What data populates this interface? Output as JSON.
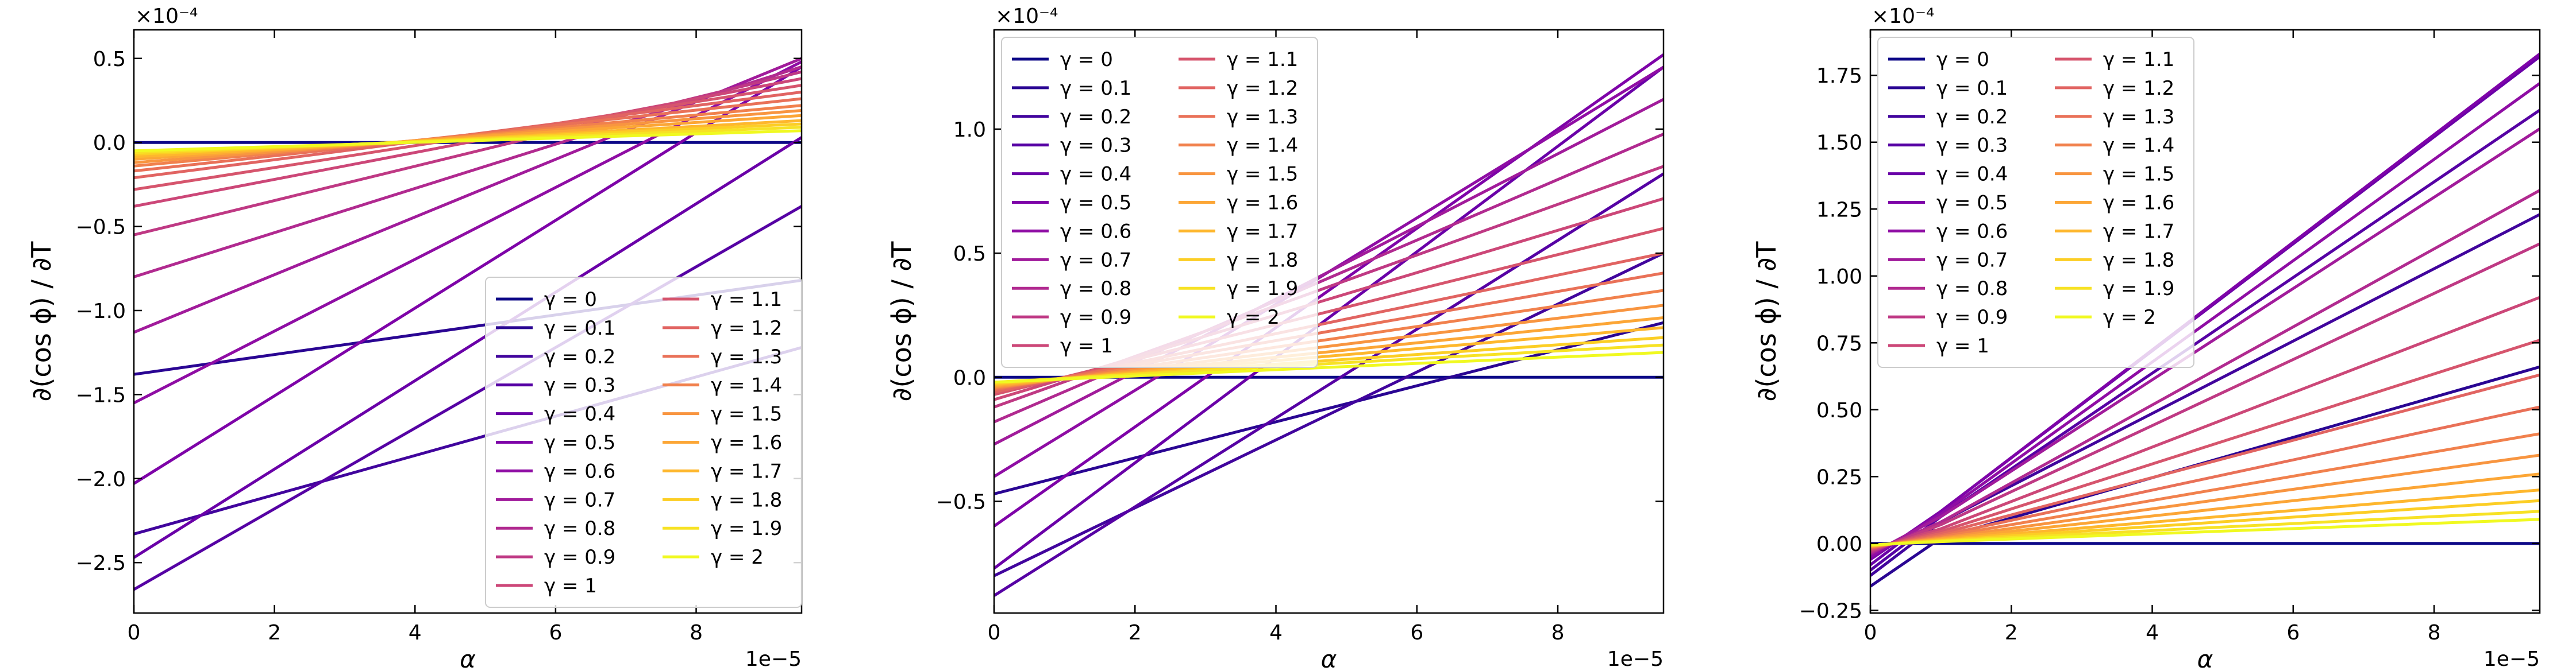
{
  "chart_data": [
    {
      "type": "line",
      "xlabel": "α",
      "ylabel": "∂(cos ϕ) / ∂T",
      "x_offset_label": "1e−5",
      "y_offset_label": "×10⁻⁴",
      "xlim": [
        0,
        9.5
      ],
      "ylim": [
        -2.8,
        0.67
      ],
      "xticks": [
        0,
        2,
        4,
        6,
        8
      ],
      "yticks": [
        -2.5,
        -2.0,
        -1.5,
        -1.0,
        -0.5,
        0.0,
        0.5
      ],
      "ytick_labels": [
        "−2.5",
        "−2.0",
        "−1.5",
        "−1.0",
        "−0.5",
        "0.0",
        "0.5"
      ],
      "legend_placement": "lower right",
      "x": [
        0,
        9.5
      ],
      "series": [
        {
          "name": "γ = 0",
          "values": [
            0.0,
            0.0
          ]
        },
        {
          "name": "γ = 0.1",
          "values": [
            -1.38,
            -0.82
          ]
        },
        {
          "name": "γ = 0.2",
          "values": [
            -2.33,
            -1.22
          ]
        },
        {
          "name": "γ = 0.3",
          "values": [
            -2.66,
            -0.38
          ]
        },
        {
          "name": "γ = 0.4",
          "values": [
            -2.47,
            0.03
          ]
        },
        {
          "name": "γ = 0.5",
          "values": [
            -2.03,
            0.45
          ]
        },
        {
          "name": "γ = 0.6",
          "values": [
            -1.55,
            0.48
          ]
        },
        {
          "name": "γ = 0.7",
          "values": [
            -1.13,
            0.5
          ]
        },
        {
          "name": "γ = 0.8",
          "values": [
            -0.8,
            0.45
          ]
        },
        {
          "name": "γ = 0.9",
          "values": [
            -0.55,
            0.42
          ]
        },
        {
          "name": "γ = 1",
          "values": [
            -0.38,
            0.38
          ]
        },
        {
          "name": "γ = 1.1",
          "values": [
            -0.28,
            0.34
          ]
        },
        {
          "name": "γ = 1.2",
          "values": [
            -0.21,
            0.3
          ]
        },
        {
          "name": "γ = 1.3",
          "values": [
            -0.17,
            0.26
          ]
        },
        {
          "name": "γ = 1.4",
          "values": [
            -0.14,
            0.22
          ]
        },
        {
          "name": "γ = 1.5",
          "values": [
            -0.12,
            0.19
          ]
        },
        {
          "name": "γ = 1.6",
          "values": [
            -0.1,
            0.16
          ]
        },
        {
          "name": "γ = 1.7",
          "values": [
            -0.085,
            0.13
          ]
        },
        {
          "name": "γ = 1.8",
          "values": [
            -0.07,
            0.11
          ]
        },
        {
          "name": "γ = 1.9",
          "values": [
            -0.06,
            0.09
          ]
        },
        {
          "name": "γ = 2",
          "values": [
            -0.05,
            0.07
          ]
        }
      ]
    },
    {
      "type": "line",
      "xlabel": "α",
      "ylabel": "∂(cos ϕ) / ∂T",
      "x_offset_label": "1e−5",
      "y_offset_label": "×10⁻⁴",
      "xlim": [
        0,
        9.5
      ],
      "ylim": [
        -0.95,
        1.4
      ],
      "xticks": [
        0,
        2,
        4,
        6,
        8
      ],
      "yticks": [
        -0.5,
        0.0,
        0.5,
        1.0
      ],
      "ytick_labels": [
        "−0.5",
        "0.0",
        "0.5",
        "1.0"
      ],
      "legend_placement": "upper left",
      "x": [
        0,
        9.5
      ],
      "series": [
        {
          "name": "γ = 0",
          "values": [
            0.0,
            0.0
          ]
        },
        {
          "name": "γ = 0.1",
          "values": [
            -0.47,
            0.22
          ]
        },
        {
          "name": "γ = 0.2",
          "values": [
            -0.8,
            0.5
          ]
        },
        {
          "name": "γ = 0.3",
          "values": [
            -0.88,
            0.82
          ]
        },
        {
          "name": "γ = 0.4",
          "values": [
            -0.77,
            1.25
          ]
        },
        {
          "name": "γ = 0.5",
          "values": [
            -0.6,
            1.3
          ]
        },
        {
          "name": "γ = 0.6",
          "values": [
            -0.4,
            1.25
          ]
        },
        {
          "name": "γ = 0.7",
          "values": [
            -0.27,
            1.12
          ]
        },
        {
          "name": "γ = 0.8",
          "values": [
            -0.18,
            0.98
          ]
        },
        {
          "name": "γ = 0.9",
          "values": [
            -0.12,
            0.85
          ]
        },
        {
          "name": "γ = 1",
          "values": [
            -0.09,
            0.72
          ]
        },
        {
          "name": "γ = 1.1",
          "values": [
            -0.07,
            0.6
          ]
        },
        {
          "name": "γ = 1.2",
          "values": [
            -0.06,
            0.5
          ]
        },
        {
          "name": "γ = 1.3",
          "values": [
            -0.05,
            0.42
          ]
        },
        {
          "name": "γ = 1.4",
          "values": [
            -0.045,
            0.35
          ]
        },
        {
          "name": "γ = 1.5",
          "values": [
            -0.04,
            0.29
          ]
        },
        {
          "name": "γ = 1.6",
          "values": [
            -0.035,
            0.24
          ]
        },
        {
          "name": "γ = 1.7",
          "values": [
            -0.03,
            0.2
          ]
        },
        {
          "name": "γ = 1.8",
          "values": [
            -0.025,
            0.16
          ]
        },
        {
          "name": "γ = 1.9",
          "values": [
            -0.02,
            0.13
          ]
        },
        {
          "name": "γ = 2",
          "values": [
            -0.02,
            0.1
          ]
        }
      ]
    },
    {
      "type": "line",
      "xlabel": "α",
      "ylabel": "∂(cos ϕ) / ∂T",
      "x_offset_label": "1e−5",
      "y_offset_label": "×10⁻⁴",
      "xlim": [
        0,
        9.5
      ],
      "ylim": [
        -0.26,
        1.92
      ],
      "xticks": [
        0,
        2,
        4,
        6,
        8
      ],
      "yticks": [
        -0.25,
        0.0,
        0.25,
        0.5,
        0.75,
        1.0,
        1.25,
        1.5,
        1.75
      ],
      "ytick_labels": [
        "−0.25",
        "0.00",
        "0.25",
        "0.50",
        "0.75",
        "1.00",
        "1.25",
        "1.50",
        "1.75"
      ],
      "legend_placement": "upper left",
      "x": [
        0,
        1,
        9.5
      ],
      "series": [
        {
          "name": "γ = 0",
          "values": [
            0.0,
            0.0,
            0.0
          ]
        },
        {
          "name": "γ = 0.1",
          "values": [
            -0.16,
            0.02,
            0.66
          ]
        },
        {
          "name": "γ = 0.2",
          "values": [
            -0.12,
            0.08,
            1.23
          ]
        },
        {
          "name": "γ = 0.3",
          "values": [
            -0.1,
            0.1,
            1.62
          ]
        },
        {
          "name": "γ = 0.4",
          "values": [
            -0.08,
            0.12,
            1.82
          ]
        },
        {
          "name": "γ = 0.5",
          "values": [
            -0.06,
            0.12,
            1.83
          ]
        },
        {
          "name": "γ = 0.6",
          "values": [
            -0.05,
            0.11,
            1.72
          ]
        },
        {
          "name": "γ = 0.7",
          "values": [
            -0.04,
            0.1,
            1.55
          ]
        },
        {
          "name": "γ = 0.8",
          "values": [
            -0.035,
            0.08,
            1.32
          ]
        },
        {
          "name": "γ = 0.9",
          "values": [
            -0.03,
            0.07,
            1.12
          ]
        },
        {
          "name": "γ = 1",
          "values": [
            -0.025,
            0.055,
            0.92
          ]
        },
        {
          "name": "γ = 1.1",
          "values": [
            -0.02,
            0.045,
            0.76
          ]
        },
        {
          "name": "γ = 1.2",
          "values": [
            -0.018,
            0.037,
            0.63
          ]
        },
        {
          "name": "γ = 1.3",
          "values": [
            -0.015,
            0.03,
            0.51
          ]
        },
        {
          "name": "γ = 1.4",
          "values": [
            -0.013,
            0.025,
            0.41
          ]
        },
        {
          "name": "γ = 1.5",
          "values": [
            -0.011,
            0.02,
            0.33
          ]
        },
        {
          "name": "γ = 1.6",
          "values": [
            -0.01,
            0.017,
            0.26
          ]
        },
        {
          "name": "γ = 1.7",
          "values": [
            -0.008,
            0.014,
            0.2
          ]
        },
        {
          "name": "γ = 1.8",
          "values": [
            -0.007,
            0.011,
            0.16
          ]
        },
        {
          "name": "γ = 1.9",
          "values": [
            -0.006,
            0.009,
            0.12
          ]
        },
        {
          "name": "γ = 2",
          "values": [
            -0.005,
            0.007,
            0.09
          ]
        }
      ]
    }
  ],
  "colors": [
    "#0d0887",
    "#2a0593",
    "#41049d",
    "#5601a4",
    "#6a00a8",
    "#7e03a8",
    "#8f0da4",
    "#a11b9b",
    "#b12a90",
    "#bf3984",
    "#cc4778",
    "#d6556d",
    "#e16462",
    "#e97158",
    "#f1814d",
    "#f89540",
    "#fca636",
    "#feb72d",
    "#fcce25",
    "#f7e225",
    "#f0f921"
  ]
}
